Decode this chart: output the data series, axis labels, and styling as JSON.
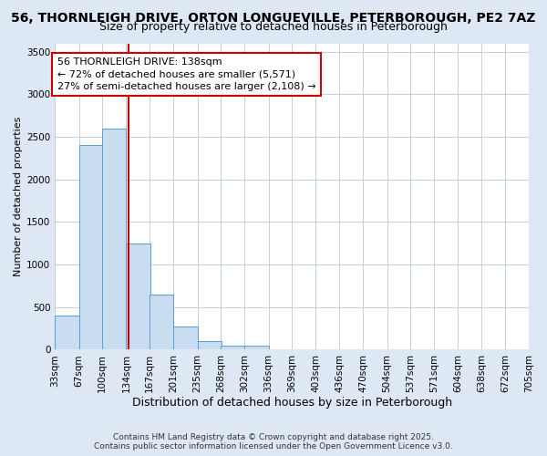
{
  "title": "56, THORNLEIGH DRIVE, ORTON LONGUEVILLE, PETERBOROUGH, PE2 7AZ",
  "subtitle": "Size of property relative to detached houses in Peterborough",
  "xlabel": "Distribution of detached houses by size in Peterborough",
  "ylabel": "Number of detached properties",
  "bin_edges": [
    33,
    67,
    100,
    134,
    167,
    201,
    235,
    268,
    302,
    336,
    369,
    403,
    436,
    470,
    504,
    537,
    571,
    604,
    638,
    672,
    705
  ],
  "bin_labels": [
    "33sqm",
    "67sqm",
    "100sqm",
    "134sqm",
    "167sqm",
    "201sqm",
    "235sqm",
    "268sqm",
    "302sqm",
    "336sqm",
    "369sqm",
    "403sqm",
    "436sqm",
    "470sqm",
    "504sqm",
    "537sqm",
    "571sqm",
    "604sqm",
    "638sqm",
    "672sqm",
    "705sqm"
  ],
  "counts": [
    400,
    2400,
    2600,
    1250,
    650,
    270,
    100,
    50,
    50,
    0,
    0,
    0,
    0,
    0,
    0,
    0,
    0,
    0,
    0,
    0
  ],
  "property_size": 138,
  "bar_color": "#c9ddf0",
  "bar_edge_color": "#5b9bd5",
  "vline_color": "#cc0000",
  "fig_bg_color": "#dde8f4",
  "plot_bg_color": "#ffffff",
  "grid_color": "#c0cfe0",
  "annotation_text": "56 THORNLEIGH DRIVE: 138sqm\n← 72% of detached houses are smaller (5,571)\n27% of semi-detached houses are larger (2,108) →",
  "annotation_facecolor": "#ffffff",
  "annotation_edgecolor": "#cc0000",
  "ylim": [
    0,
    3600
  ],
  "yticks": [
    0,
    500,
    1000,
    1500,
    2000,
    2500,
    3000,
    3500
  ],
  "title_fontsize": 10,
  "subtitle_fontsize": 9,
  "xlabel_fontsize": 9,
  "ylabel_fontsize": 8,
  "tick_fontsize": 7.5,
  "annot_fontsize": 8,
  "footer1": "Contains HM Land Registry data © Crown copyright and database right 2025.",
  "footer2": "Contains public sector information licensed under the Open Government Licence v3.0.",
  "footer_fontsize": 6.5
}
